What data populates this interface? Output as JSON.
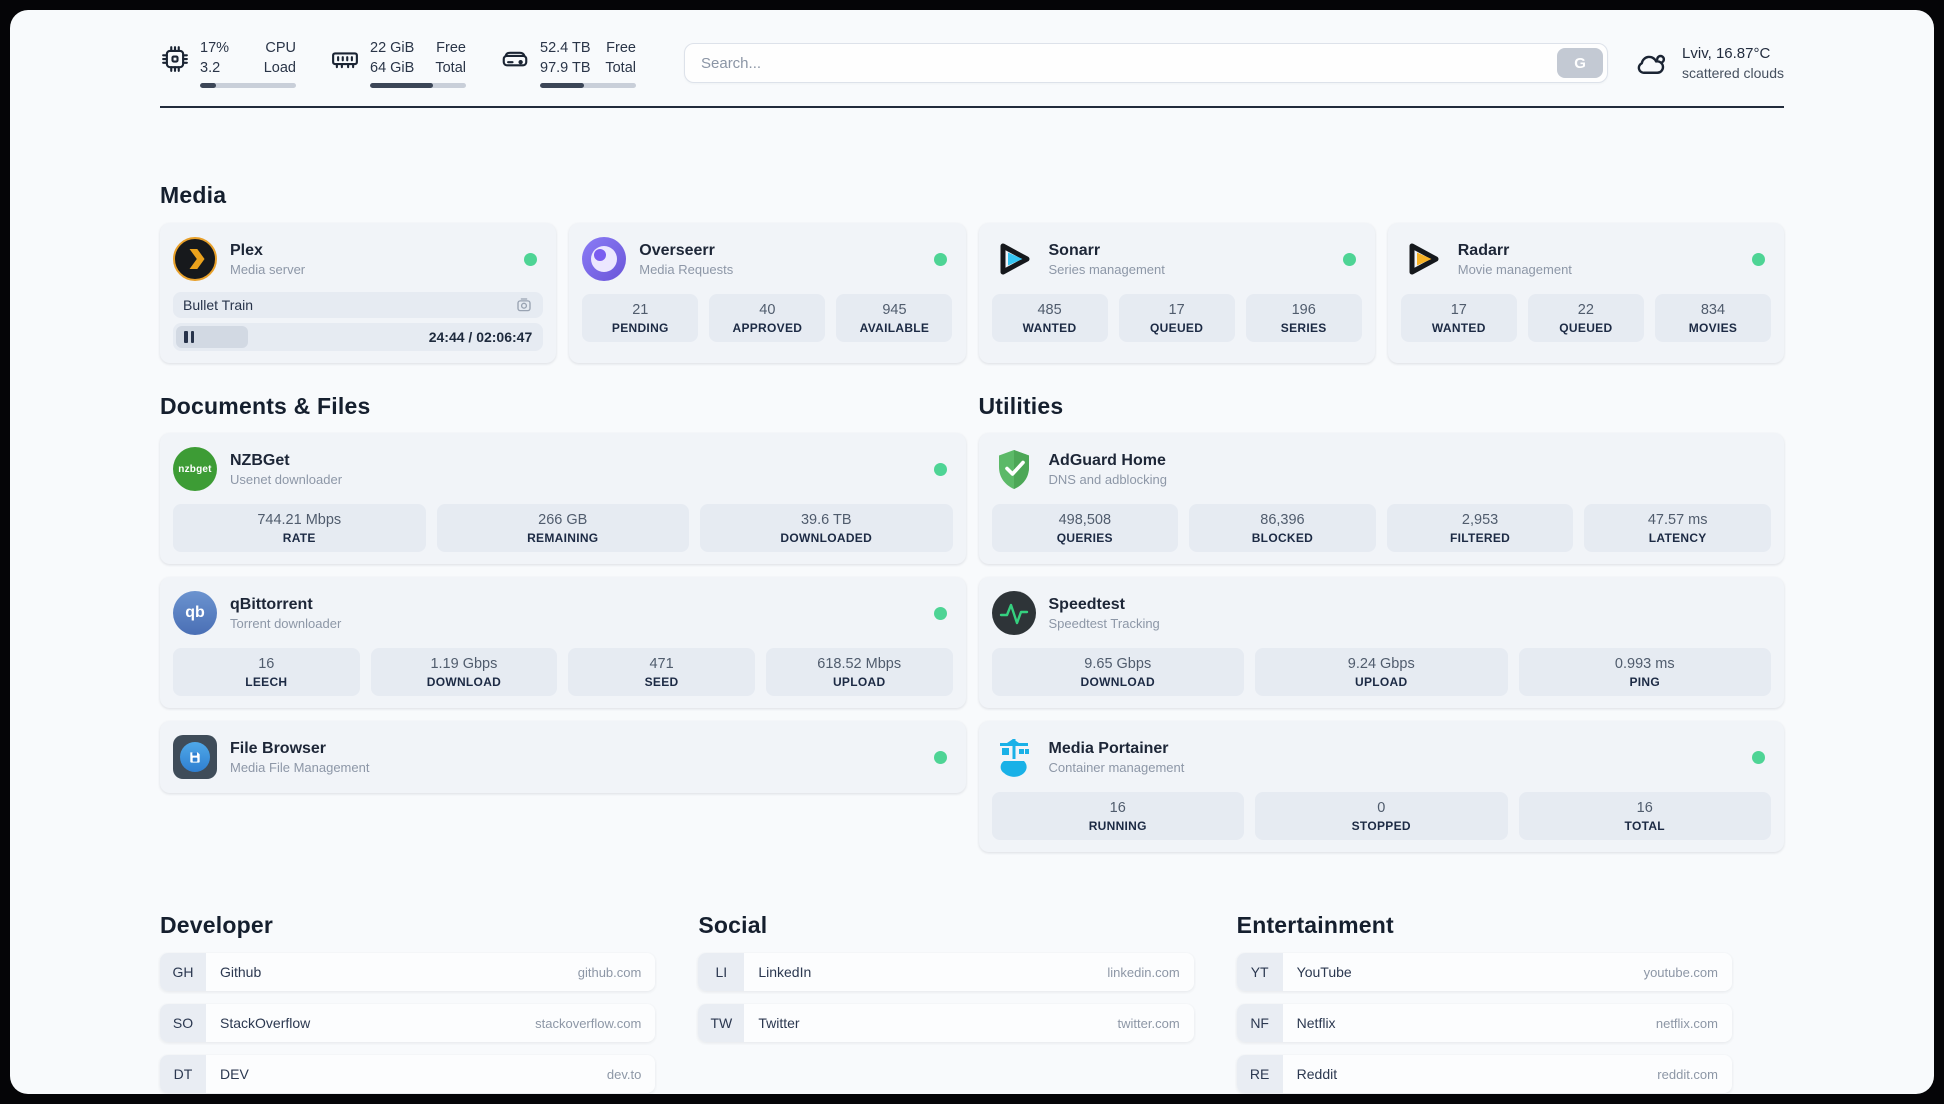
{
  "topbar": {
    "resources": [
      {
        "icon": "cpu-icon",
        "value_top": "17%",
        "value_bottom": "3.2",
        "label_top": "CPU",
        "label_bottom": "Load",
        "progress": 17
      },
      {
        "icon": "memory-icon",
        "value_top": "22 GiB",
        "value_bottom": "64 GiB",
        "label_top": "Free",
        "label_bottom": "Total",
        "progress": 66
      },
      {
        "icon": "disk-icon",
        "value_top": "52.4 TB",
        "value_bottom": "97.9 TB",
        "label_top": "Free",
        "label_bottom": "Total",
        "progress": 46
      }
    ],
    "search": {
      "placeholder": "Search...",
      "button_label": "G"
    },
    "weather": {
      "location": "Lviv, 16.87°C",
      "condition": "scattered clouds"
    }
  },
  "sections": {
    "media": {
      "title": "Media"
    },
    "documents": {
      "title": "Documents & Files"
    },
    "utilities": {
      "title": "Utilities"
    }
  },
  "services": {
    "plex": {
      "name": "Plex",
      "desc": "Media server",
      "online": true,
      "now_playing": {
        "title": "Bullet Train",
        "time": "24:44 / 02:06:47",
        "progress": 19.5
      }
    },
    "overseerr": {
      "name": "Overseerr",
      "desc": "Media Requests",
      "online": true,
      "stats": [
        {
          "value": "21",
          "label": "PENDING"
        },
        {
          "value": "40",
          "label": "APPROVED"
        },
        {
          "value": "945",
          "label": "AVAILABLE"
        }
      ]
    },
    "sonarr": {
      "name": "Sonarr",
      "desc": "Series management",
      "online": true,
      "stats": [
        {
          "value": "485",
          "label": "WANTED"
        },
        {
          "value": "17",
          "label": "QUEUED"
        },
        {
          "value": "196",
          "label": "SERIES"
        }
      ]
    },
    "radarr": {
      "name": "Radarr",
      "desc": "Movie management",
      "online": true,
      "stats": [
        {
          "value": "17",
          "label": "WANTED"
        },
        {
          "value": "22",
          "label": "QUEUED"
        },
        {
          "value": "834",
          "label": "MOVIES"
        }
      ]
    },
    "nzbget": {
      "name": "NZBGet",
      "desc": "Usenet downloader",
      "online": true,
      "icon_text": "nzbget",
      "stats": [
        {
          "value": "744.21 Mbps",
          "label": "RATE"
        },
        {
          "value": "266 GB",
          "label": "REMAINING"
        },
        {
          "value": "39.6 TB",
          "label": "DOWNLOADED"
        }
      ]
    },
    "qbittorrent": {
      "name": "qBittorrent",
      "desc": "Torrent downloader",
      "online": true,
      "icon_text": "qb",
      "stats": [
        {
          "value": "16",
          "label": "LEECH"
        },
        {
          "value": "1.19 Gbps",
          "label": "DOWNLOAD"
        },
        {
          "value": "471",
          "label": "SEED"
        },
        {
          "value": "618.52 Mbps",
          "label": "UPLOAD"
        }
      ]
    },
    "filebrowser": {
      "name": "File Browser",
      "desc": "Media File Management",
      "online": true
    },
    "adguard": {
      "name": "AdGuard Home",
      "desc": "DNS and adblocking",
      "stats": [
        {
          "value": "498,508",
          "label": "QUERIES"
        },
        {
          "value": "86,396",
          "label": "BLOCKED"
        },
        {
          "value": "2,953",
          "label": "FILTERED"
        },
        {
          "value": "47.57 ms",
          "label": "LATENCY"
        }
      ]
    },
    "speedtest": {
      "name": "Speedtest",
      "desc": "Speedtest Tracking",
      "stats": [
        {
          "value": "9.65 Gbps",
          "label": "DOWNLOAD"
        },
        {
          "value": "9.24 Gbps",
          "label": "UPLOAD"
        },
        {
          "value": "0.993 ms",
          "label": "PING"
        }
      ]
    },
    "portainer": {
      "name": "Media Portainer",
      "desc": "Container management",
      "online": true,
      "stats": [
        {
          "value": "16",
          "label": "RUNNING"
        },
        {
          "value": "0",
          "label": "STOPPED"
        },
        {
          "value": "16",
          "label": "TOTAL"
        }
      ]
    }
  },
  "bookmarks": {
    "developer": {
      "title": "Developer",
      "items": [
        {
          "abbr": "GH",
          "name": "Github",
          "url": "github.com"
        },
        {
          "abbr": "SO",
          "name": "StackOverflow",
          "url": "stackoverflow.com"
        },
        {
          "abbr": "DT",
          "name": "DEV",
          "url": "dev.to"
        }
      ]
    },
    "social": {
      "title": "Social",
      "items": [
        {
          "abbr": "LI",
          "name": "LinkedIn",
          "url": "linkedin.com"
        },
        {
          "abbr": "TW",
          "name": "Twitter",
          "url": "twitter.com"
        }
      ]
    },
    "entertainment": {
      "title": "Entertainment",
      "items": [
        {
          "abbr": "YT",
          "name": "YouTube",
          "url": "youtube.com"
        },
        {
          "abbr": "NF",
          "name": "Netflix",
          "url": "netflix.com"
        },
        {
          "abbr": "RE",
          "name": "Reddit",
          "url": "reddit.com"
        }
      ]
    }
  },
  "colors": {
    "accent_green": "#4ed495",
    "progress_fill": "#3c4657"
  }
}
